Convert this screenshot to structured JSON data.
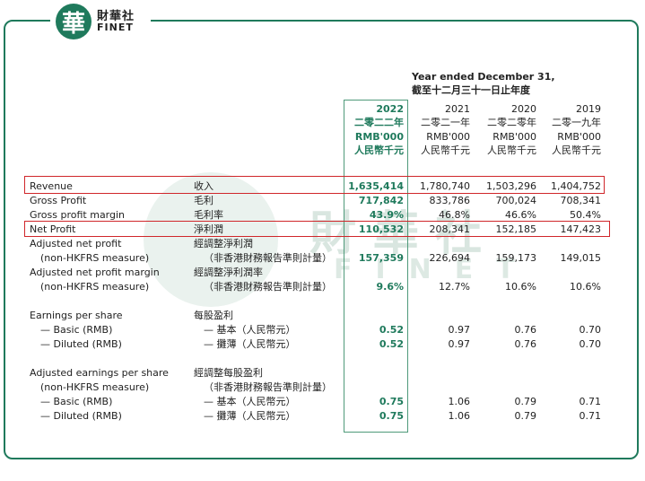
{
  "logo": {
    "char": "華",
    "cn": "財華社",
    "en": "FINET"
  },
  "watermark": {
    "cn": "財華社",
    "en": "FINET"
  },
  "header": {
    "period_en": "Year ended December 31,",
    "period_cn": "截至十二月三十一日止年度",
    "years": [
      {
        "year": "2022",
        "cn": "二零二二年",
        "unit": "RMB'000",
        "unit_cn": "人民幣千元"
      },
      {
        "year": "2021",
        "cn": "二零二一年",
        "unit": "RMB'000",
        "unit_cn": "人民幣千元"
      },
      {
        "year": "2020",
        "cn": "二零二零年",
        "unit": "RMB'000",
        "unit_cn": "人民幣千元"
      },
      {
        "year": "2019",
        "cn": "二零一九年",
        "unit": "RMB'000",
        "unit_cn": "人民幣千元"
      }
    ]
  },
  "rows": [
    {
      "en": "Revenue",
      "cn": "收入",
      "v": [
        "1,635,414",
        "1,780,740",
        "1,503,296",
        "1,404,752"
      ]
    },
    {
      "en": "Gross Profit",
      "cn": "毛利",
      "v": [
        "717,842",
        "833,786",
        "700,024",
        "708,341"
      ]
    },
    {
      "en": "Gross profit margin",
      "cn": "毛利率",
      "v": [
        "43.9%",
        "46.8%",
        "46.6%",
        "50.4%"
      ]
    },
    {
      "en": "Net Profit",
      "cn": "淨利潤",
      "v": [
        "110,532",
        "208,341",
        "152,185",
        "147,423"
      ]
    },
    {
      "en": "Adjusted net profit",
      "cn": "經調整淨利潤"
    },
    {
      "en": "(non-HKFRS measure)",
      "cn": "（非香港財務報告準則計量）",
      "v": [
        "157,359",
        "226,694",
        "159,173",
        "149,015"
      ]
    },
    {
      "en": "Adjusted net profit margin",
      "cn": "經調整淨利潤率"
    },
    {
      "en": "(non-HKFRS measure)",
      "cn": "（非香港財務報告準則計量）",
      "v": [
        "9.6%",
        "12.7%",
        "10.6%",
        "10.6%"
      ]
    },
    {
      "en": "Earnings per share",
      "cn": "每股盈利"
    },
    {
      "en": "— Basic (RMB)",
      "cn": "— 基本（人民幣元）",
      "v": [
        "0.52",
        "0.97",
        "0.76",
        "0.70"
      ]
    },
    {
      "en": "— Diluted (RMB)",
      "cn": "— 攤薄（人民幣元）",
      "v": [
        "0.52",
        "0.97",
        "0.76",
        "0.70"
      ]
    },
    {
      "en": "Adjusted earnings per share",
      "cn": "經調整每股盈利"
    },
    {
      "en": "(non-HKFRS measure)",
      "cn": "（非香港財務報告準則計量）"
    },
    {
      "en": "— Basic (RMB)",
      "cn": "— 基本（人民幣元）",
      "v": [
        "0.75",
        "1.06",
        "0.79",
        "0.71"
      ]
    },
    {
      "en": "— Diluted (RMB)",
      "cn": "— 攤薄（人民幣元）",
      "v": [
        "0.75",
        "1.06",
        "0.79",
        "0.71"
      ]
    }
  ]
}
